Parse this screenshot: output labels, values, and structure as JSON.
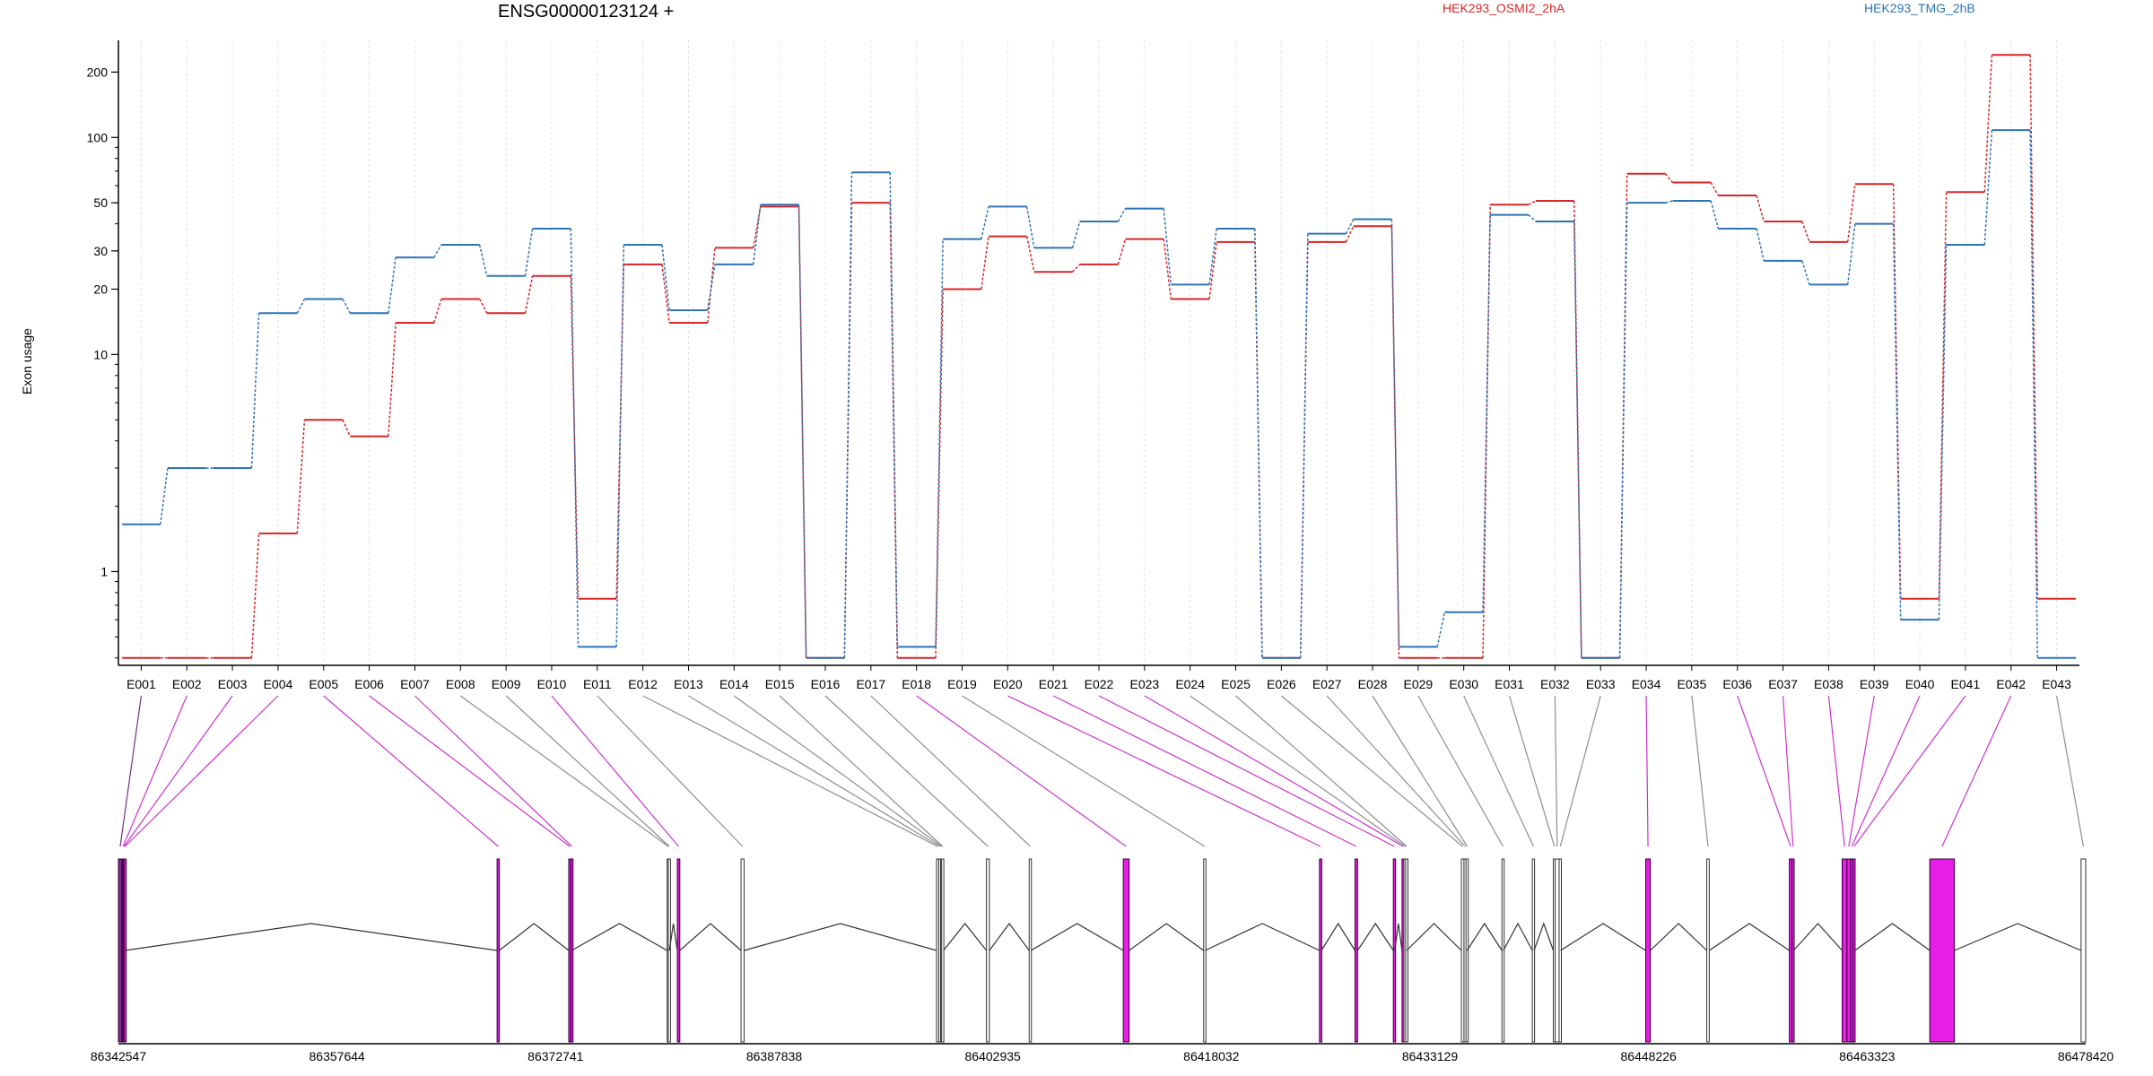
{
  "chart_data": {
    "type": "line",
    "title": "ENSG00000123124 +",
    "ylabel": "Exon usage",
    "yscale": "log",
    "y_ticks": [
      1,
      10,
      20,
      30,
      50,
      100,
      200
    ],
    "y_tick_labels": [
      "1",
      "10",
      "20",
      "30",
      "50",
      "100",
      "200"
    ],
    "categories": [
      "E001",
      "E002",
      "E003",
      "E004",
      "E005",
      "E006",
      "E007",
      "E008",
      "E009",
      "E010",
      "E011",
      "E012",
      "E013",
      "E014",
      "E015",
      "E016",
      "E017",
      "E018",
      "E019",
      "E020",
      "E021",
      "E022",
      "E023",
      "E024",
      "E025",
      "E026",
      "E027",
      "E028",
      "E029",
      "E030",
      "E031",
      "E032",
      "E033",
      "E034",
      "E035",
      "E036",
      "E037",
      "E038",
      "E039",
      "E040",
      "E041",
      "E042",
      "E043"
    ],
    "series": [
      {
        "name": "HEK293_OSMI2_2hA",
        "color": "#d62728",
        "values": [
          0.4,
          0.4,
          0.4,
          1.5,
          5.0,
          4.2,
          14.0,
          18.0,
          15.5,
          23.0,
          0.75,
          26.0,
          14.0,
          31.0,
          48.0,
          0.4,
          50.0,
          0.4,
          20.0,
          35.0,
          24.0,
          26.0,
          34.0,
          18.0,
          33.0,
          0.4,
          33.0,
          39.0,
          0.4,
          0.4,
          49.0,
          51.0,
          0.4,
          68.0,
          62.0,
          54.0,
          41.0,
          33.0,
          61.0,
          0.75,
          56.0,
          240.0,
          0.75
        ]
      },
      {
        "name": "HEK293_TMG_2hB",
        "color": "#2e74b5",
        "values": [
          1.65,
          3.0,
          3.0,
          15.5,
          18.0,
          15.5,
          28.0,
          32.0,
          23.0,
          38.0,
          0.45,
          32.0,
          16.0,
          26.0,
          49.0,
          0.4,
          69.0,
          0.45,
          34.0,
          48.0,
          31.0,
          41.0,
          47.0,
          21.0,
          38.0,
          0.4,
          36.0,
          42.0,
          0.45,
          0.65,
          44.0,
          41.0,
          0.4,
          50.0,
          51.0,
          38.0,
          27.0,
          21.0,
          40.0,
          0.6,
          32.0,
          108.0,
          0.4
        ]
      }
    ],
    "exon_colors": [
      "#7a2d8c",
      "#cc33cc",
      "#cc33cc",
      "#cc33cc",
      "#cc33cc",
      "#cc33cc",
      "#cc33cc",
      "#8e8e8e",
      "#8e8e8e",
      "#cc33cc",
      "#8e8e8e",
      "#8e8e8e",
      "#8e8e8e",
      "#8e8e8e",
      "#8e8e8e",
      "#8e8e8e",
      "#8e8e8e",
      "#cc33cc",
      "#8e8e8e",
      "#cc33cc",
      "#cc33cc",
      "#cc33cc",
      "#cc33cc",
      "#8e8e8e",
      "#8e8e8e",
      "#8e8e8e",
      "#8e8e8e",
      "#8e8e8e",
      "#8e8e8e",
      "#8e8e8e",
      "#8e8e8e",
      "#8e8e8e",
      "#8e8e8e",
      "#cc33cc",
      "#8e8e8e",
      "#cc33cc",
      "#cc33cc",
      "#cc33cc",
      "#cc33cc",
      "#cc33cc",
      "#cc33cc",
      "#cc33cc",
      "#8e8e8e"
    ],
    "genomic_range": [
      86342547,
      86478420
    ],
    "genomic_ticks": [
      86342547,
      86357644,
      86372741,
      86387838,
      86402935,
      86418032,
      86433129,
      86448226,
      86463323,
      86478420
    ],
    "exons": [
      {
        "id": "E001",
        "start": 86342547,
        "end": 86342790
      },
      {
        "id": "E002",
        "start": 86342790,
        "end": 86342860
      },
      {
        "id": "E003",
        "start": 86342860,
        "end": 86342930
      },
      {
        "id": "E004",
        "start": 86342930,
        "end": 86342990
      },
      {
        "id": "E005",
        "start": 86368700,
        "end": 86368850
      },
      {
        "id": "E006",
        "start": 86373650,
        "end": 86373790
      },
      {
        "id": "E007",
        "start": 86373790,
        "end": 86373850
      },
      {
        "id": "E008",
        "start": 86380450,
        "end": 86380520
      },
      {
        "id": "E009",
        "start": 86380520,
        "end": 86380600
      },
      {
        "id": "E010",
        "start": 86381150,
        "end": 86381320
      },
      {
        "id": "E011",
        "start": 86385550,
        "end": 86385760
      },
      {
        "id": "E012",
        "start": 86399050,
        "end": 86399200
      },
      {
        "id": "E013",
        "start": 86399200,
        "end": 86399330
      },
      {
        "id": "E014",
        "start": 86399330,
        "end": 86399400
      },
      {
        "id": "E015",
        "start": 86399400,
        "end": 86399530
      },
      {
        "id": "E016",
        "start": 86402500,
        "end": 86402700
      },
      {
        "id": "E017",
        "start": 86405450,
        "end": 86405570
      },
      {
        "id": "E018",
        "start": 86411950,
        "end": 86412350
      },
      {
        "id": "E019",
        "start": 86417500,
        "end": 86417600
      },
      {
        "id": "E020",
        "start": 86425500,
        "end": 86425630
      },
      {
        "id": "E021",
        "start": 86427950,
        "end": 86428130
      },
      {
        "id": "E022",
        "start": 86430600,
        "end": 86430700
      },
      {
        "id": "E023",
        "start": 86431200,
        "end": 86431330
      },
      {
        "id": "E024",
        "start": 86431330,
        "end": 86431450
      },
      {
        "id": "E025",
        "start": 86431450,
        "end": 86431520
      },
      {
        "id": "E026",
        "start": 86435300,
        "end": 86435480
      },
      {
        "id": "E027",
        "start": 86435480,
        "end": 86435620
      },
      {
        "id": "E028",
        "start": 86435620,
        "end": 86435690
      },
      {
        "id": "E029",
        "start": 86438100,
        "end": 86438200
      },
      {
        "id": "E030",
        "start": 86440200,
        "end": 86440320
      },
      {
        "id": "E031",
        "start": 86441650,
        "end": 86441780
      },
      {
        "id": "E032",
        "start": 86441780,
        "end": 86442050
      },
      {
        "id": "E033",
        "start": 86442050,
        "end": 86442150
      },
      {
        "id": "E034",
        "start": 86448030,
        "end": 86448350
      },
      {
        "id": "E035",
        "start": 86452250,
        "end": 86452420
      },
      {
        "id": "E036",
        "start": 86457950,
        "end": 86458130
      },
      {
        "id": "E037",
        "start": 86458130,
        "end": 86458250
      },
      {
        "id": "E038",
        "start": 86461600,
        "end": 86461930
      },
      {
        "id": "E039",
        "start": 86461930,
        "end": 86462180
      },
      {
        "id": "E040",
        "start": 86462180,
        "end": 86462340
      },
      {
        "id": "E041",
        "start": 86462340,
        "end": 86462480
      },
      {
        "id": "E042",
        "start": 86467650,
        "end": 86469350
      },
      {
        "id": "E043",
        "start": 86478100,
        "end": 86478420
      }
    ]
  }
}
